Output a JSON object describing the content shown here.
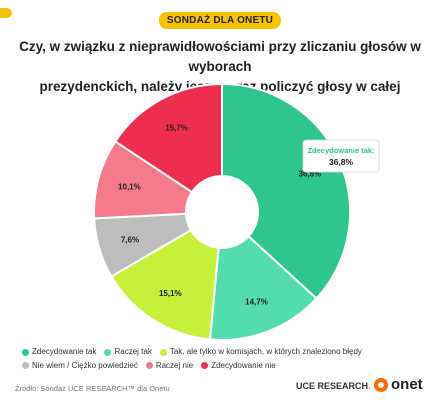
{
  "header": {
    "badge": "SONDAŻ DLA ONETU"
  },
  "title_line1": "Czy, w związku z nieprawidłowościami przy zliczaniu głosów w wyborach",
  "title_line2": "prezydenckich, należy jeszcze raz policzyć głosy w całej Polsce?",
  "chart_data": {
    "type": "pie",
    "hole": true,
    "slices": [
      {
        "label": "Zdecydowanie tak",
        "value": 36.8,
        "value_label": "36,8%",
        "color": "#2fc58f"
      },
      {
        "label": "Raczej tak",
        "value": 14.7,
        "value_label": "14,7%",
        "color": "#53dcae"
      },
      {
        "label": "Tak, ale tylko w komisjach, w których znaleziono błędy",
        "value": 15.1,
        "value_label": "15,1%",
        "color": "#c6f13b"
      },
      {
        "label": "Nie wiem / Ciężko powiedzieć",
        "value": 7.6,
        "value_label": "7,6%",
        "color": "#bdbdbd"
      },
      {
        "label": "Raczej nie",
        "value": 10.1,
        "value_label": "10,1%",
        "color": "#f47a8c"
      },
      {
        "label": "Zdecydowanie nie",
        "value": 15.7,
        "value_label": "15,7%",
        "color": "#ee2e4e"
      }
    ],
    "tooltip": {
      "title": "Zdecydowanie tak:",
      "value": "36,8%",
      "title_color": "#2fc58f"
    },
    "legend_position": "bottom"
  },
  "footer": {
    "source": "Źródło: Sondaż UCE RESEARCH™ dla Onetu",
    "uce_brand": "UCE RESEARCH",
    "uce_dot": ".",
    "onet_brand": "onet"
  }
}
